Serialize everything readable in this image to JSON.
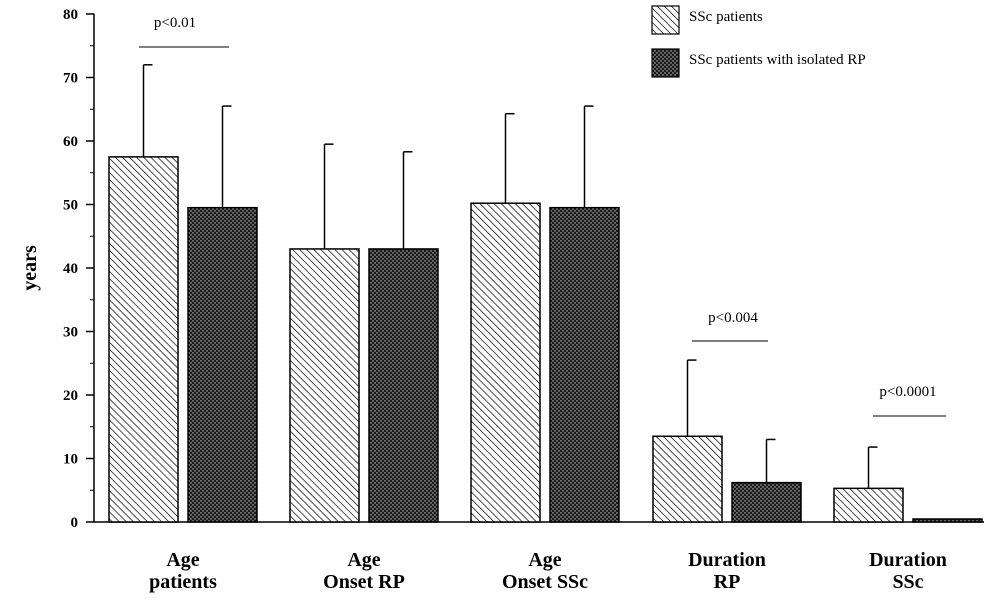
{
  "chart_data": {
    "type": "bar",
    "title": "",
    "xlabel": "",
    "ylabel": "years",
    "ylim": [
      0,
      80
    ],
    "yticks": [
      0,
      10,
      20,
      30,
      40,
      50,
      60,
      70,
      80
    ],
    "grid": false,
    "legend_position": "top-right",
    "categories": [
      [
        "Age",
        "patients"
      ],
      [
        "Age",
        "Onset RP"
      ],
      [
        "Age",
        "Onset SSc"
      ],
      [
        "Duration",
        "RP"
      ],
      [
        "Duration",
        "SSc"
      ]
    ],
    "series": [
      {
        "name": "SSc patients",
        "pattern": "diagonal-hatch",
        "color": "#000000",
        "values": [
          57.5,
          43,
          50.2,
          13.5,
          5.3
        ],
        "error_upper": [
          72,
          59.5,
          64.3,
          25.5,
          11.8
        ]
      },
      {
        "name": "SSc patients with isolated RP",
        "pattern": "dotted-dark",
        "color": "#1a1a1a",
        "values": [
          49.5,
          43,
          49.5,
          6.2,
          0.2
        ],
        "error_upper": [
          65.5,
          58.3,
          65.5,
          13,
          0.2
        ]
      }
    ],
    "annotations": [
      {
        "text": "p<0.01",
        "category_index": 0
      },
      {
        "text": "p<0.004",
        "category_index": 3
      },
      {
        "text": "p<0.0001",
        "category_index": 4
      }
    ]
  }
}
